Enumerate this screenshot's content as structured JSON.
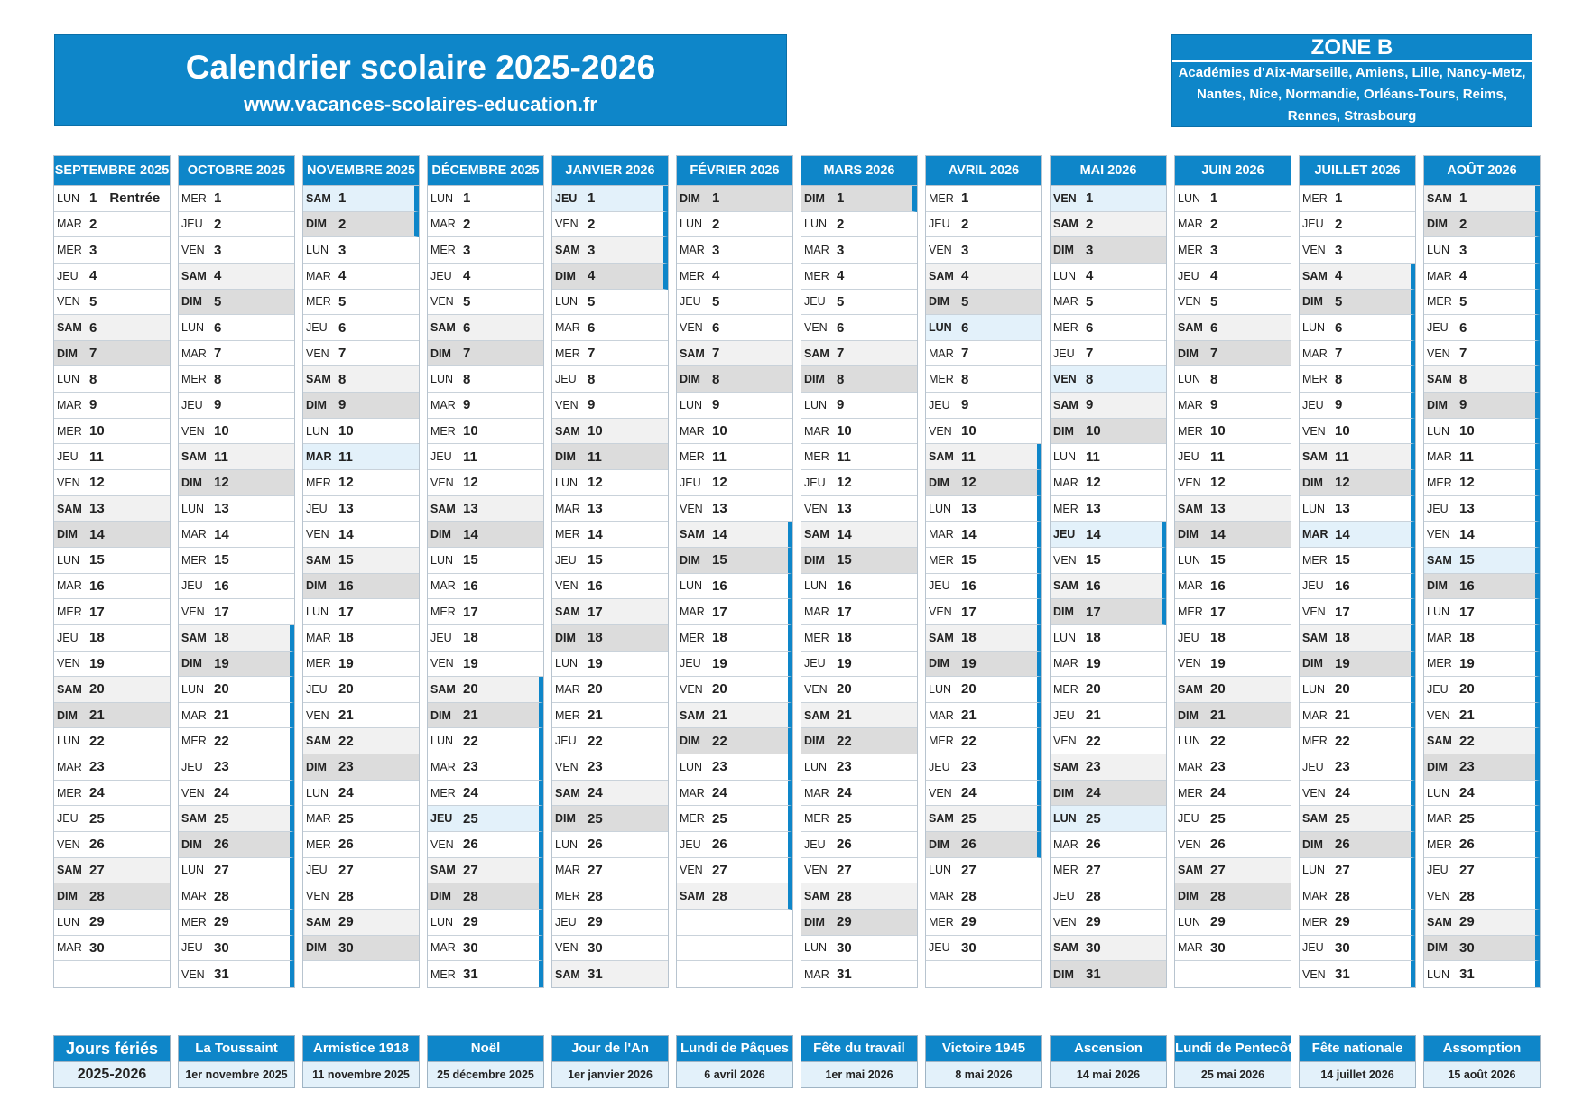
{
  "header": {
    "title": "Calendrier scolaire 2025-2026",
    "website": "www.vacances-scolaires-education.fr"
  },
  "zone": {
    "name": "ZONE B",
    "academies": "Académies d'Aix-Marseille, Amiens, Lille, Nancy-Metz, Nantes, Nice, Normandie, Orléans-Tours, Reims, Rennes, Strasbourg"
  },
  "colors": {
    "accent": "#0e86c9",
    "saturday": "#f1f1f1",
    "sunday": "#dcdcdc",
    "holiday": "#e3f1fa"
  },
  "months": [
    {
      "label": "SEPTEMBRE 2025",
      "first": "LUN",
      "days": 30,
      "holidays": [],
      "vacation": [],
      "notes": {
        "1": "Rentrée"
      }
    },
    {
      "label": "OCTOBRE 2025",
      "first": "MER",
      "days": 31,
      "holidays": [],
      "vacation": [
        [
          18,
          31
        ]
      ],
      "notes": {}
    },
    {
      "label": "NOVEMBRE 2025",
      "first": "SAM",
      "days": 30,
      "holidays": [
        1,
        11
      ],
      "vacation": [
        [
          1,
          2
        ]
      ],
      "notes": {}
    },
    {
      "label": "DÉCEMBRE 2025",
      "first": "LUN",
      "days": 31,
      "holidays": [
        25
      ],
      "vacation": [
        [
          20,
          31
        ]
      ],
      "notes": {}
    },
    {
      "label": "JANVIER 2026",
      "first": "JEU",
      "days": 31,
      "holidays": [
        1
      ],
      "vacation": [
        [
          1,
          4
        ]
      ],
      "notes": {}
    },
    {
      "label": "FÉVRIER 2026",
      "first": "DIM",
      "days": 28,
      "holidays": [],
      "vacation": [
        [
          14,
          28
        ]
      ],
      "notes": {}
    },
    {
      "label": "MARS 2026",
      "first": "DIM",
      "days": 31,
      "holidays": [],
      "vacation": [
        [
          1,
          1
        ]
      ],
      "notes": {}
    },
    {
      "label": "AVRIL 2026",
      "first": "MER",
      "days": 30,
      "holidays": [
        6
      ],
      "vacation": [
        [
          11,
          26
        ]
      ],
      "notes": {}
    },
    {
      "label": "MAI 2026",
      "first": "VEN",
      "days": 31,
      "holidays": [
        1,
        8,
        14,
        25
      ],
      "vacation": [
        [
          14,
          17
        ]
      ],
      "notes": {}
    },
    {
      "label": "JUIN 2026",
      "first": "LUN",
      "days": 30,
      "holidays": [],
      "vacation": [],
      "notes": {}
    },
    {
      "label": "JUILLET 2026",
      "first": "MER",
      "days": 31,
      "holidays": [
        14
      ],
      "vacation": [
        [
          4,
          31
        ]
      ],
      "notes": {}
    },
    {
      "label": "AOÛT 2026",
      "first": "SAM",
      "days": 31,
      "holidays": [
        15
      ],
      "vacation": [
        [
          1,
          31
        ]
      ],
      "notes": {}
    }
  ],
  "holidays_header": {
    "title": "Jours fériés",
    "subtitle": "2025-2026"
  },
  "public_holidays": [
    {
      "name": "La Toussaint",
      "date": "1er novembre 2025"
    },
    {
      "name": "Armistice 1918",
      "date": "11 novembre 2025"
    },
    {
      "name": "Noël",
      "date": "25 décembre 2025"
    },
    {
      "name": "Jour de l'An",
      "date": "1er janvier 2026"
    },
    {
      "name": "Lundi de Pâques",
      "date": "6 avril 2026"
    },
    {
      "name": "Fête du travail",
      "date": "1er mai 2026"
    },
    {
      "name": "Victoire 1945",
      "date": "8 mai 2026"
    },
    {
      "name": "Ascension",
      "date": "14 mai 2026"
    },
    {
      "name": "Lundi de Pentecôte",
      "date": "25 mai 2026"
    },
    {
      "name": "Fête nationale",
      "date": "14 juillet 2026"
    },
    {
      "name": "Assomption",
      "date": "15 août 2026"
    }
  ]
}
